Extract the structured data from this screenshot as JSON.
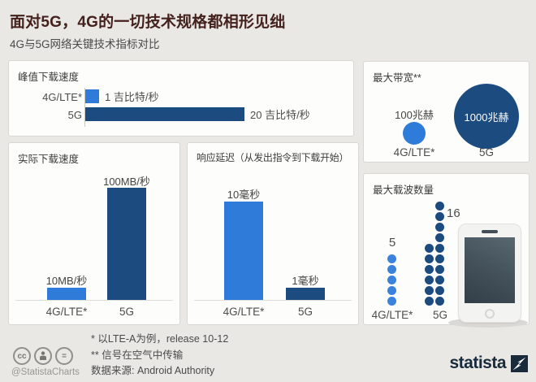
{
  "page": {
    "title": "面对5G，4G的一切技术规格都相形见绌",
    "subtitle": "4G与5G网络关键技术指标对比"
  },
  "colors": {
    "light_blue": "#2e7bd9",
    "dark_blue": "#1c4b80",
    "title_color": "#44211c",
    "page_bg": "#e9e8e5",
    "panel_bg": "#fdfdfc"
  },
  "panels": {
    "peak": {
      "title": "峰值下载速度",
      "rows": [
        {
          "label": "4G/LTE*",
          "value": "1 吉比特/秒"
        },
        {
          "label": "5G",
          "value": "20 吉比特/秒"
        }
      ]
    },
    "actual": {
      "title": "实际下载速度",
      "bars": [
        {
          "label": "4G/LTE*",
          "value": "10MB/秒"
        },
        {
          "label": "5G",
          "value": "100MB/秒"
        }
      ]
    },
    "latency": {
      "title": "响应延迟（从发出指令到下载开始）",
      "bars": [
        {
          "label": "4G/LTE*",
          "value": "10毫秒"
        },
        {
          "label": "5G",
          "value": "1毫秒"
        }
      ]
    },
    "bandwidth": {
      "title": "最大带宽**",
      "items": [
        {
          "label": "4G/LTE*",
          "value": "100兆赫"
        },
        {
          "label": "5G",
          "value": "1000兆赫"
        }
      ]
    },
    "carriers": {
      "title": "最大载波数量",
      "items": [
        {
          "label": "4G/LTE*",
          "count": 5,
          "count_label": "5",
          "columns": [
            5
          ]
        },
        {
          "label": "5G",
          "count": 16,
          "count_label": "16",
          "columns": [
            6,
            10
          ]
        }
      ]
    }
  },
  "footnotes": {
    "line1": "* 以LTE-A为例，release 10-12",
    "line2": "** 信号在空气中传输",
    "source": "数据来源: Android Authority"
  },
  "credit": {
    "handle": "@StatistaCharts"
  },
  "brand": {
    "name": "statista"
  },
  "chart_data": [
    {
      "type": "bar",
      "orientation": "horizontal",
      "title": "峰值下载速度",
      "categories": [
        "4G/LTE*",
        "5G"
      ],
      "values": [
        1,
        20
      ],
      "unit": "吉比特/秒",
      "data_labels": [
        "1 吉比特/秒",
        "20 吉比特/秒"
      ]
    },
    {
      "type": "bar",
      "orientation": "vertical",
      "title": "实际下载速度",
      "categories": [
        "4G/LTE*",
        "5G"
      ],
      "values": [
        10,
        100
      ],
      "unit": "MB/秒",
      "data_labels": [
        "10MB/秒",
        "100MB/秒"
      ]
    },
    {
      "type": "bar",
      "orientation": "vertical",
      "title": "响应延迟（从发出指令到下载开始）",
      "categories": [
        "4G/LTE*",
        "5G"
      ],
      "values": [
        10,
        1
      ],
      "unit": "毫秒",
      "data_labels": [
        "10毫秒",
        "1毫秒"
      ]
    },
    {
      "type": "bubble",
      "title": "最大带宽**",
      "categories": [
        "4G/LTE*",
        "5G"
      ],
      "values": [
        100,
        1000
      ],
      "unit": "兆赫",
      "data_labels": [
        "100兆赫",
        "1000兆赫"
      ]
    },
    {
      "type": "dot-matrix",
      "title": "最大载波数量",
      "categories": [
        "4G/LTE*",
        "5G"
      ],
      "values": [
        5,
        16
      ]
    }
  ]
}
